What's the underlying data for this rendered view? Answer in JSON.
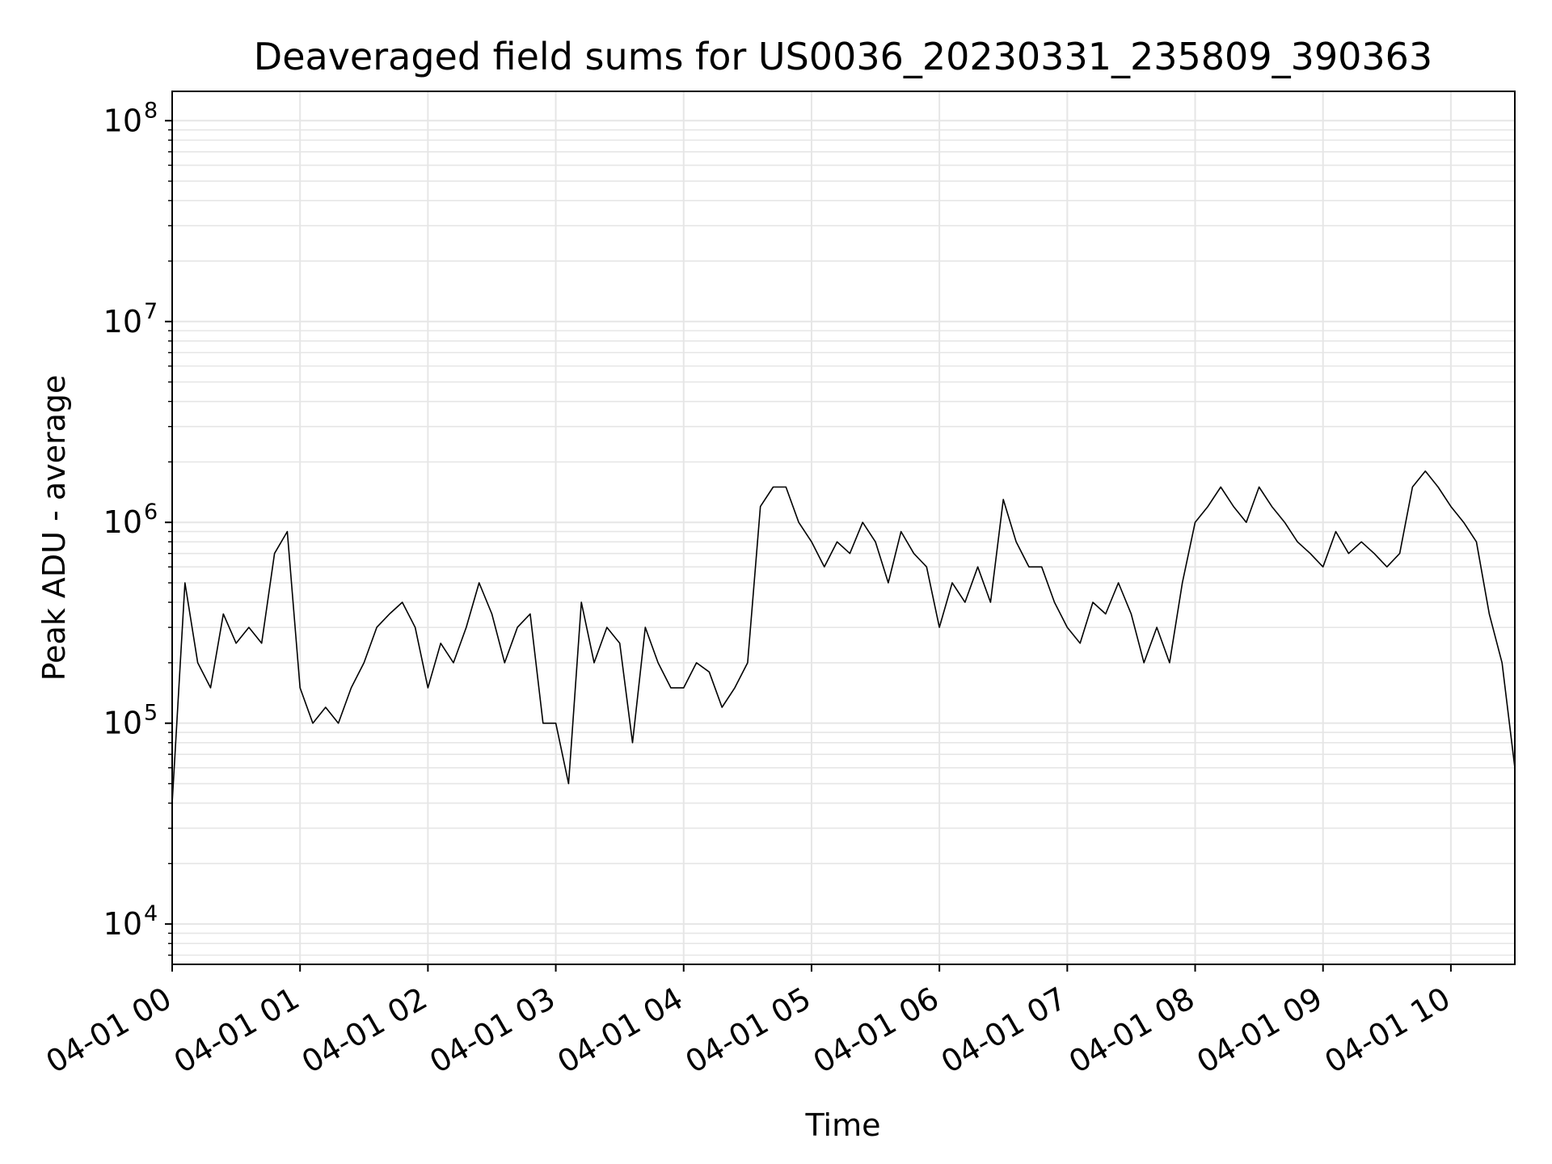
{
  "chart_data": {
    "type": "line",
    "title": "Deaveraged field sums for US0036_20230331_235809_390363",
    "xlabel": "Time",
    "ylabel": "Peak ADU - average",
    "y_scale": "log",
    "ylim": [
      6300,
      140000000
    ],
    "xlim": [
      "2023-04-01T00:00",
      "2023-04-01T10:30"
    ],
    "grid": true,
    "line_color": "#000000",
    "grid_color": "#e6e6e6",
    "x_tick_labels": [
      "04-01 00",
      "04-01 01",
      "04-01 02",
      "04-01 03",
      "04-01 04",
      "04-01 05",
      "04-01 06",
      "04-01 07",
      "04-01 08",
      "04-01 09",
      "04-01 10"
    ],
    "y_ticks": [
      {
        "value": 10000,
        "base": "10",
        "exp": "4"
      },
      {
        "value": 100000,
        "base": "10",
        "exp": "5"
      },
      {
        "value": 1000000,
        "base": "10",
        "exp": "6"
      },
      {
        "value": 10000000,
        "base": "10",
        "exp": "7"
      },
      {
        "value": 100000000,
        "base": "10",
        "exp": "8"
      }
    ],
    "series": [
      {
        "x": [
          "2023-04-01T00:00",
          "2023-04-01T00:06",
          "2023-04-01T00:12",
          "2023-04-01T00:18",
          "2023-04-01T00:24",
          "2023-04-01T00:30",
          "2023-04-01T00:36",
          "2023-04-01T00:42",
          "2023-04-01T00:48",
          "2023-04-01T00:54",
          "2023-04-01T01:00",
          "2023-04-01T01:06",
          "2023-04-01T01:12",
          "2023-04-01T01:18",
          "2023-04-01T01:24",
          "2023-04-01T01:30",
          "2023-04-01T01:36",
          "2023-04-01T01:42",
          "2023-04-01T01:48",
          "2023-04-01T01:54",
          "2023-04-01T02:00",
          "2023-04-01T02:06",
          "2023-04-01T02:12",
          "2023-04-01T02:18",
          "2023-04-01T02:24",
          "2023-04-01T02:30",
          "2023-04-01T02:36",
          "2023-04-01T02:42",
          "2023-04-01T02:48",
          "2023-04-01T02:54",
          "2023-04-01T03:00",
          "2023-04-01T03:06",
          "2023-04-01T03:12",
          "2023-04-01T03:18",
          "2023-04-01T03:24",
          "2023-04-01T03:30",
          "2023-04-01T03:36",
          "2023-04-01T03:42",
          "2023-04-01T03:48",
          "2023-04-01T03:54",
          "2023-04-01T04:00",
          "2023-04-01T04:06",
          "2023-04-01T04:12",
          "2023-04-01T04:18",
          "2023-04-01T04:24",
          "2023-04-01T04:30",
          "2023-04-01T04:36",
          "2023-04-01T04:42",
          "2023-04-01T04:48",
          "2023-04-01T04:54",
          "2023-04-01T05:00",
          "2023-04-01T05:06",
          "2023-04-01T05:12",
          "2023-04-01T05:18",
          "2023-04-01T05:24",
          "2023-04-01T05:30",
          "2023-04-01T05:36",
          "2023-04-01T05:42",
          "2023-04-01T05:48",
          "2023-04-01T05:54",
          "2023-04-01T06:00",
          "2023-04-01T06:06",
          "2023-04-01T06:12",
          "2023-04-01T06:18",
          "2023-04-01T06:24",
          "2023-04-01T06:30",
          "2023-04-01T06:36",
          "2023-04-01T06:42",
          "2023-04-01T06:48",
          "2023-04-01T06:54",
          "2023-04-01T07:00",
          "2023-04-01T07:06",
          "2023-04-01T07:12",
          "2023-04-01T07:18",
          "2023-04-01T07:24",
          "2023-04-01T07:30",
          "2023-04-01T07:36",
          "2023-04-01T07:42",
          "2023-04-01T07:48",
          "2023-04-01T07:54",
          "2023-04-01T08:00",
          "2023-04-01T08:06",
          "2023-04-01T08:12",
          "2023-04-01T08:18",
          "2023-04-01T08:24",
          "2023-04-01T08:30",
          "2023-04-01T08:36",
          "2023-04-01T08:42",
          "2023-04-01T08:48",
          "2023-04-01T08:54",
          "2023-04-01T09:00",
          "2023-04-01T09:06",
          "2023-04-01T09:12",
          "2023-04-01T09:18",
          "2023-04-01T09:24",
          "2023-04-01T09:30",
          "2023-04-01T09:36",
          "2023-04-01T09:42",
          "2023-04-01T09:48",
          "2023-04-01T09:54",
          "2023-04-01T10:00",
          "2023-04-01T10:06",
          "2023-04-01T10:12",
          "2023-04-01T10:18",
          "2023-04-01T10:24",
          "2023-04-01T10:30"
        ],
        "values": [
          40000,
          500000,
          200000,
          150000,
          350000,
          250000,
          300000,
          250000,
          700000,
          900000,
          150000,
          100000,
          120000,
          100000,
          150000,
          200000,
          300000,
          350000,
          400000,
          300000,
          150000,
          250000,
          200000,
          300000,
          500000,
          350000,
          200000,
          300000,
          350000,
          100000,
          100000,
          50000,
          400000,
          200000,
          300000,
          250000,
          80000,
          300000,
          200000,
          150000,
          150000,
          200000,
          180000,
          120000,
          150000,
          200000,
          1200000,
          1500000,
          1500000,
          1000000,
          800000,
          600000,
          800000,
          700000,
          1000000,
          800000,
          500000,
          900000,
          700000,
          600000,
          300000,
          500000,
          400000,
          600000,
          400000,
          1300000,
          800000,
          600000,
          600000,
          400000,
          300000,
          250000,
          400000,
          350000,
          500000,
          350000,
          200000,
          300000,
          200000,
          500000,
          1000000,
          1200000,
          1500000,
          1200000,
          1000000,
          1500000,
          1200000,
          1000000,
          800000,
          700000,
          600000,
          900000,
          700000,
          800000,
          700000,
          600000,
          700000,
          1500000,
          1800000,
          1500000,
          1200000,
          1000000,
          800000,
          350000,
          200000,
          60000
        ]
      }
    ]
  }
}
